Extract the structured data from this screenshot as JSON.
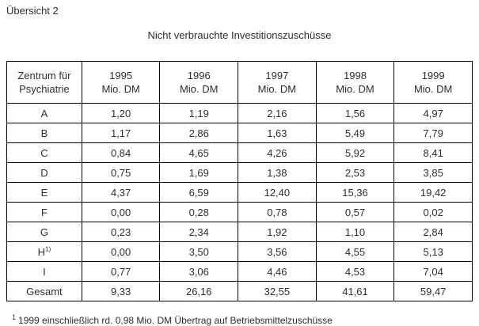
{
  "page": {
    "label": "Übersicht 2",
    "title": "Nicht verbrauchte Investitionszuschüsse"
  },
  "table": {
    "header": {
      "col0_line1": "Zentrum für",
      "col0_line2": "Psychiatrie",
      "years": [
        "1995",
        "1996",
        "1997",
        "1998",
        "1999"
      ],
      "unit": "Mio. DM"
    },
    "rows": [
      {
        "label": "A",
        "sup": "",
        "values": [
          "1,20",
          "1,19",
          "2,16",
          "1,56",
          "4,97"
        ]
      },
      {
        "label": "B",
        "sup": "",
        "values": [
          "1,17",
          "2,86",
          "1,63",
          "5,49",
          "7,79"
        ]
      },
      {
        "label": "C",
        "sup": "",
        "values": [
          "0,84",
          "4,65",
          "4,26",
          "5,92",
          "8,41"
        ]
      },
      {
        "label": "D",
        "sup": "",
        "values": [
          "0,75",
          "1,69",
          "1,38",
          "2,53",
          "3,85"
        ]
      },
      {
        "label": "E",
        "sup": "",
        "values": [
          "4,37",
          "6,59",
          "12,40",
          "15,36",
          "19,42"
        ]
      },
      {
        "label": "F",
        "sup": "",
        "values": [
          "0,00",
          "0,28",
          "0,78",
          "0,57",
          "0,02"
        ]
      },
      {
        "label": "G",
        "sup": "",
        "values": [
          "0,23",
          "2,34",
          "1,92",
          "1,10",
          "2,84"
        ]
      },
      {
        "label": "H",
        "sup": "1)",
        "values": [
          "0,00",
          "3,50",
          "3,56",
          "4,55",
          "5,13"
        ]
      },
      {
        "label": "I",
        "sup": "",
        "values": [
          "0,77",
          "3,06",
          "4,46",
          "4,53",
          "7,04"
        ]
      },
      {
        "label": "Gesamt",
        "sup": "",
        "values": [
          "9,33",
          "26,16",
          "32,55",
          "41,61",
          "59,47"
        ]
      }
    ]
  },
  "footnote": {
    "marker": "1",
    "text": "1999 einschließlich rd. 0,98 Mio. DM Übertrag auf Betriebsmittelzuschüsse"
  },
  "colors": {
    "text": "#2e2e2e",
    "border": "#000000",
    "background": "#ffffff"
  }
}
